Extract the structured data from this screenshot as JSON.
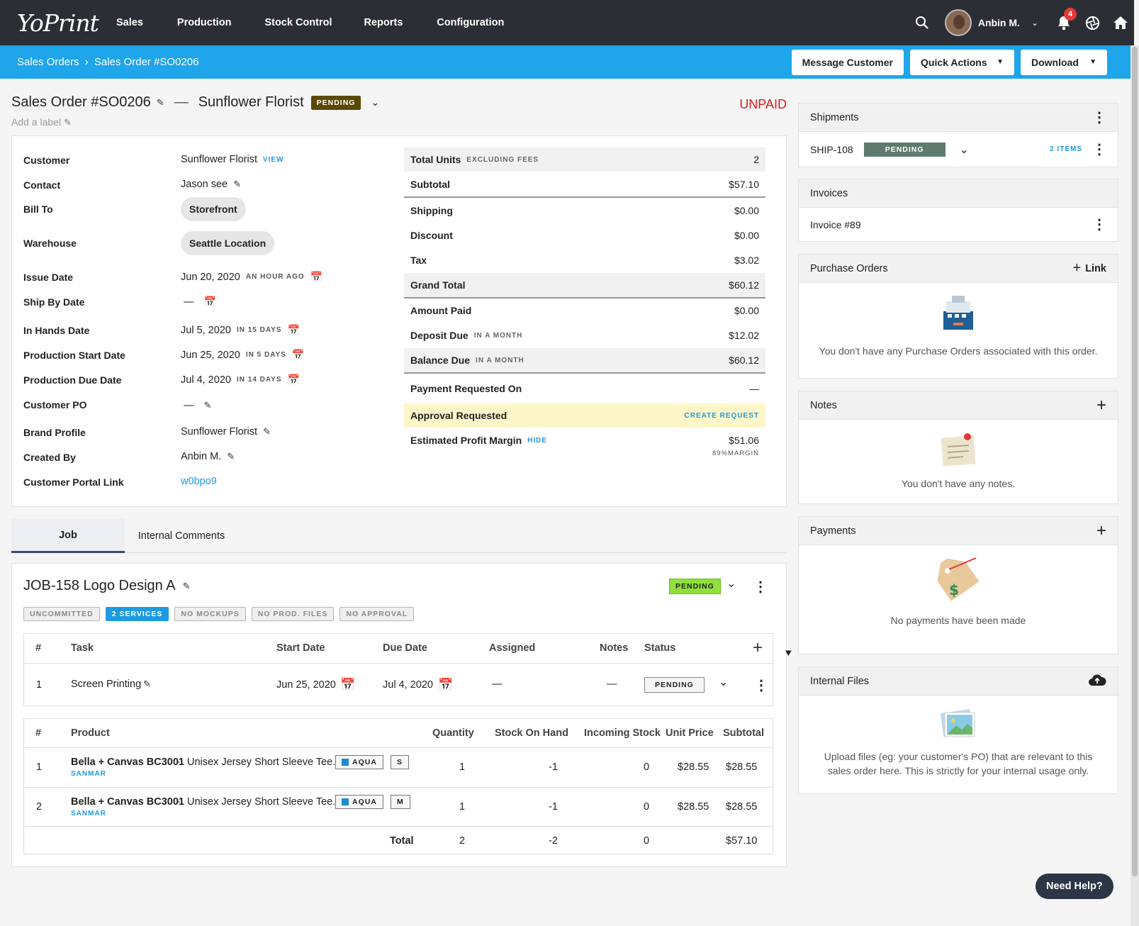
{
  "nav": {
    "logo": "YoPrint",
    "items": [
      "Sales",
      "Production",
      "Stock Control",
      "Reports",
      "Configuration"
    ],
    "user": "Anbin M.",
    "notifications": "4"
  },
  "breadcrumb": {
    "parent": "Sales Orders",
    "current": "Sales Order #SO0206"
  },
  "actions": {
    "message": "Message Customer",
    "quick": "Quick Actions",
    "download": "Download"
  },
  "order": {
    "title": "Sales Order #SO0206",
    "customer_name": "Sunflower Florist",
    "status": "PENDING",
    "payment": "UNPAID",
    "add_label": "Add a label"
  },
  "fields": {
    "customer": {
      "label": "Customer",
      "value": "Sunflower Florist",
      "link": "VIEW"
    },
    "contact": {
      "label": "Contact",
      "value": "Jason see"
    },
    "bill_to": {
      "label": "Bill To",
      "value": "Storefront"
    },
    "warehouse": {
      "label": "Warehouse",
      "value": "Seattle Location"
    },
    "issue": {
      "label": "Issue Date",
      "value": "Jun 20, 2020",
      "rel": "AN HOUR AGO"
    },
    "ship_by": {
      "label": "Ship By Date",
      "value": "—"
    },
    "in_hands": {
      "label": "In Hands Date",
      "value": "Jul 5, 2020",
      "rel": "IN 15 DAYS"
    },
    "prod_start": {
      "label": "Production Start Date",
      "value": "Jun 25, 2020",
      "rel": "IN 5 DAYS"
    },
    "prod_due": {
      "label": "Production Due Date",
      "value": "Jul 4, 2020",
      "rel": "IN 14 DAYS"
    },
    "cust_po": {
      "label": "Customer PO",
      "value": "—"
    },
    "brand": {
      "label": "Brand Profile",
      "value": "Sunflower Florist"
    },
    "created": {
      "label": "Created By",
      "value": "Anbin M."
    },
    "portal": {
      "label": "Customer Portal Link",
      "value": "w0bpo9"
    }
  },
  "summary": {
    "total_units": {
      "label": "Total Units",
      "note": "EXCLUDING FEES",
      "value": "2"
    },
    "subtotal": {
      "label": "Subtotal",
      "value": "$57.10"
    },
    "shipping": {
      "label": "Shipping",
      "value": "$0.00"
    },
    "discount": {
      "label": "Discount",
      "value": "$0.00"
    },
    "tax": {
      "label": "Tax",
      "value": "$3.02"
    },
    "grand": {
      "label": "Grand Total",
      "value": "$60.12"
    },
    "paid": {
      "label": "Amount Paid",
      "value": "$0.00"
    },
    "deposit": {
      "label": "Deposit Due",
      "note": "IN A MONTH",
      "value": "$12.02"
    },
    "balance": {
      "label": "Balance Due",
      "note": "IN A MONTH",
      "value": "$60.12"
    },
    "pay_req": {
      "label": "Payment Requested On",
      "value": "—"
    },
    "approval": {
      "label": "Approval Requested",
      "link": "CREATE REQUEST"
    },
    "profit": {
      "label": "Estimated Profit Margin",
      "link": "HIDE",
      "value": "$51.06",
      "margin": "89%MARGIN"
    }
  },
  "panels": {
    "shipments": {
      "title": "Shipments",
      "id": "SHIP-108",
      "status": "PENDING",
      "items": "2 ITEMS"
    },
    "invoices": {
      "title": "Invoices",
      "item": "Invoice #89"
    },
    "po": {
      "title": "Purchase Orders",
      "link": "Link",
      "empty": "You don't have any Purchase Orders associated with this order."
    },
    "notes": {
      "title": "Notes",
      "empty": "You don't have any notes."
    },
    "payments": {
      "title": "Payments",
      "empty": "No payments have been made"
    },
    "files": {
      "title": "Internal Files",
      "empty": "Upload files (eg: your customer's PO) that are relevant to this sales order here. This is strictly for your internal usage only."
    }
  },
  "tabs": [
    "Job",
    "Internal Comments"
  ],
  "job": {
    "title": "JOB-158 Logo Design A",
    "status": "PENDING",
    "chips": [
      "UNCOMMITTED",
      "2 SERVICES",
      "NO MOCKUPS",
      "NO PROD. FILES",
      "NO APPROVAL"
    ]
  },
  "tasks": {
    "headers": [
      "#",
      "Task",
      "Start Date",
      "Due Date",
      "Assigned",
      "Notes",
      "Status"
    ],
    "rows": [
      {
        "n": "1",
        "task": "Screen Printing",
        "start": "Jun 25, 2020",
        "due": "Jul 4, 2020",
        "assigned": "—",
        "notes": "—",
        "status": "PENDING"
      }
    ]
  },
  "products": {
    "headers": [
      "#",
      "Product",
      "Quantity",
      "Stock On Hand",
      "Incoming Stock",
      "Unit Price",
      "Subtotal"
    ],
    "rows": [
      {
        "n": "1",
        "name": "Bella + Canvas BC3001",
        "sep": "-",
        "desc": "Unisex Jersey Short Sleeve Tee.",
        "supplier": "SANMAR",
        "color": "AQUA",
        "size": "S",
        "qty": "1",
        "stock": "-1",
        "incoming": "0",
        "price": "$28.55",
        "subtotal": "$28.55"
      },
      {
        "n": "2",
        "name": "Bella + Canvas BC3001",
        "sep": "-",
        "desc": "Unisex Jersey Short Sleeve Tee.",
        "supplier": "SANMAR",
        "color": "AQUA",
        "size": "M",
        "qty": "1",
        "stock": "-1",
        "incoming": "0",
        "price": "$28.55",
        "subtotal": "$28.55"
      }
    ],
    "total": {
      "label": "Total",
      "qty": "2",
      "stock": "-2",
      "incoming": "0",
      "subtotal": "$57.10"
    }
  },
  "help": "Need Help?"
}
